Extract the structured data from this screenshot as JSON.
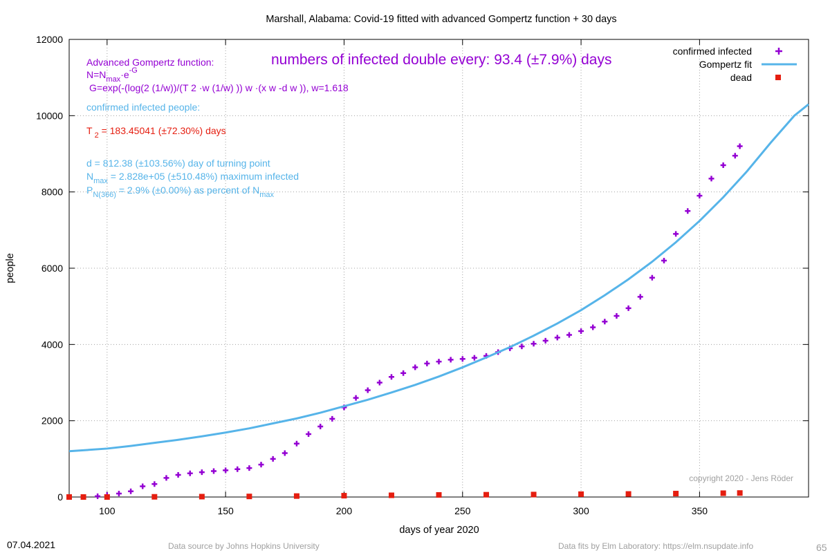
{
  "chart_data": {
    "type": "scatter",
    "title": "Marshall,  Alabama: Covid-19 fitted with advanced Gompertz function + 30 days",
    "xlabel": "days of year 2020",
    "ylabel": "people",
    "xlim": [
      84,
      396
    ],
    "ylim": [
      0,
      12000
    ],
    "x_ticks": [
      100,
      150,
      200,
      250,
      300,
      350
    ],
    "y_ticks": [
      0,
      2000,
      4000,
      6000,
      8000,
      10000,
      12000
    ],
    "grid": true,
    "legend_position": "top-right",
    "legend": [
      {
        "label": "confirmed infected",
        "color": "#9400d3",
        "marker": "+"
      },
      {
        "label": "Gompertz fit",
        "color": "#56b4e9",
        "marker": "line"
      },
      {
        "label": "dead",
        "color": "#e51e10",
        "marker": "square"
      }
    ],
    "series": [
      {
        "name": "confirmed infected",
        "color": "#9400d3",
        "x": [
          84,
          90,
          96,
          100,
          105,
          110,
          115,
          120,
          125,
          130,
          135,
          140,
          145,
          150,
          155,
          160,
          165,
          170,
          175,
          180,
          185,
          190,
          195,
          200,
          205,
          210,
          215,
          220,
          225,
          230,
          235,
          240,
          245,
          250,
          255,
          260,
          265,
          270,
          275,
          280,
          285,
          290,
          295,
          300,
          305,
          310,
          315,
          320,
          325,
          330,
          335,
          340,
          345,
          350,
          355,
          360,
          365,
          367
        ],
        "y": [
          0,
          0,
          20,
          50,
          90,
          150,
          280,
          340,
          500,
          580,
          620,
          650,
          680,
          700,
          730,
          760,
          850,
          1000,
          1150,
          1400,
          1650,
          1850,
          2050,
          2350,
          2600,
          2800,
          3000,
          3150,
          3250,
          3400,
          3500,
          3550,
          3600,
          3620,
          3650,
          3700,
          3800,
          3900,
          3950,
          4020,
          4100,
          4180,
          4250,
          4350,
          4450,
          4600,
          4750,
          4950,
          5250,
          5750,
          6200,
          6900,
          7500,
          7900,
          8350,
          8700,
          8950,
          9200
        ]
      },
      {
        "name": "Gompertz fit",
        "color": "#56b4e9",
        "x": [
          84,
          100,
          110,
          120,
          130,
          140,
          150,
          160,
          170,
          180,
          190,
          200,
          210,
          220,
          230,
          240,
          250,
          260,
          270,
          280,
          290,
          300,
          310,
          320,
          330,
          340,
          350,
          360,
          370,
          380,
          390,
          396
        ],
        "y": [
          1200,
          1270,
          1340,
          1420,
          1500,
          1590,
          1690,
          1800,
          1930,
          2060,
          2210,
          2380,
          2550,
          2740,
          2940,
          3160,
          3400,
          3660,
          3930,
          4230,
          4550,
          4900,
          5290,
          5710,
          6170,
          6680,
          7240,
          7860,
          8540,
          9290,
          10000,
          10300
        ]
      },
      {
        "name": "dead",
        "color": "#e51e10",
        "x": [
          84,
          90,
          100,
          120,
          140,
          160,
          180,
          200,
          220,
          240,
          260,
          280,
          300,
          320,
          340,
          360,
          367
        ],
        "y": [
          0,
          0,
          0,
          5,
          10,
          15,
          25,
          35,
          45,
          55,
          60,
          65,
          75,
          80,
          90,
          100,
          105
        ]
      }
    ]
  },
  "annotations": {
    "doubling": "numbers of infected double every: 93.4 (±7.9%) days",
    "func_title": "Advanced Gompertz function:",
    "n_line_main": "N=N",
    "n_line_sub": "max",
    "n_line_tail": "·e",
    "n_line_sup": "-G",
    "g_line": "G=exp(-(log(2 (1/w))/(T 2 ·w (1/w) )) w ·(x w -d w )), w=1.618",
    "confirmed_label": "confirmed infected people:",
    "t2_main": "T",
    "t2_sub": "2",
    "t2_tail": " = 183.45041 (±72.30%) days",
    "d_line": "d = 812.38 (±103.56%) day of turning point",
    "nmax_main": "N",
    "nmax_sub": "max",
    "nmax_tail": " = 2.828e+05 (±510.48%) maximum infected",
    "p_main": "P",
    "p_sub": "N(366)",
    "p_mid": " = 2.9% (±0.00%) as percent of N",
    "p_sub2": "max",
    "copyright": "copyright 2020 - Jens Röder"
  },
  "footer": {
    "date": "07.04.2021",
    "source": "Data source by Johns Hopkins University",
    "fits": "Data fits by Elm Laboratory: https://elm.nsupdate.info",
    "page": "65"
  }
}
